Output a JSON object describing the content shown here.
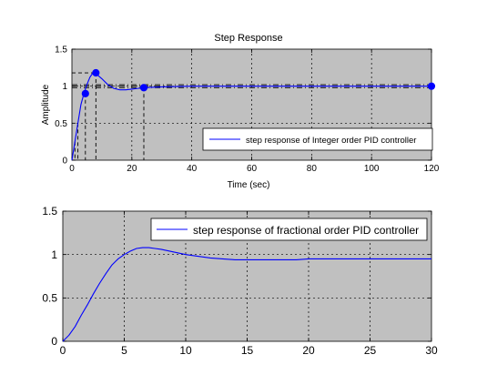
{
  "chart_data": [
    {
      "type": "line",
      "title": "Step Response",
      "xlabel": "Time (sec)",
      "ylabel": "Amplitude",
      "xlim": [
        0,
        120
      ],
      "ylim": [
        0,
        1.5
      ],
      "xticks": [
        0,
        20,
        40,
        60,
        80,
        100,
        120
      ],
      "xtick_labels": [
        "0",
        "20",
        "40",
        "60",
        "80",
        "100",
        "120"
      ],
      "yticks": [
        0,
        0.5,
        1,
        1.5
      ],
      "ytick_labels": [
        "0",
        "0.5",
        "1",
        "1.5"
      ],
      "grid": true,
      "legend": "bottom-right",
      "background": "#c0c0c0",
      "series": [
        {
          "name": "step response of Integer order PID controller",
          "color": "#0000ff",
          "x": [
            0,
            1,
            2,
            3,
            4,
            5,
            6,
            7,
            8,
            10,
            12,
            14,
            16,
            18,
            20,
            22,
            24,
            30,
            40,
            60,
            80,
            100,
            120
          ],
          "y": [
            0,
            0.25,
            0.5,
            0.75,
            0.9,
            1.02,
            1.12,
            1.18,
            1.17,
            1.1,
            1.02,
            0.97,
            0.95,
            0.95,
            0.96,
            0.97,
            0.98,
            0.99,
            1.0,
            1.0,
            1.0,
            1.0,
            1.0
          ]
        }
      ],
      "markers": [
        {
          "x": 4.5,
          "y": 0.9
        },
        {
          "x": 8,
          "y": 1.18
        },
        {
          "x": 24,
          "y": 0.98
        },
        {
          "x": 120,
          "y": 1.0
        }
      ],
      "reference_lines": {
        "horizontal": [
          0.98,
          1.0,
          1.02,
          1.18
        ],
        "vertical": [
          1,
          2,
          4.5,
          8,
          24
        ]
      }
    },
    {
      "type": "line",
      "title": "",
      "xlabel": "",
      "ylabel": "",
      "xlim": [
        0,
        30
      ],
      "ylim": [
        0,
        1.5
      ],
      "xticks": [
        0,
        5,
        10,
        15,
        20,
        25,
        30
      ],
      "xtick_labels": [
        "0",
        "5",
        "10",
        "15",
        "20",
        "25",
        "30"
      ],
      "yticks": [
        0,
        0.5,
        1,
        1.5
      ],
      "ytick_labels": [
        "0",
        "0.5",
        "1",
        "1.5"
      ],
      "grid": true,
      "legend": "top-right",
      "background": "#c0c0c0",
      "series": [
        {
          "name": "step response of fractional order PID controller",
          "color": "#0000ff",
          "x": [
            0,
            0.5,
            1,
            1.5,
            2,
            2.5,
            3,
            3.5,
            4,
            4.5,
            5,
            5.5,
            6,
            6.5,
            7,
            7.5,
            8,
            9,
            10,
            11,
            12,
            13,
            14,
            15,
            17,
            19,
            20,
            25,
            30
          ],
          "y": [
            0,
            0.07,
            0.17,
            0.3,
            0.42,
            0.55,
            0.67,
            0.78,
            0.88,
            0.95,
            1.0,
            1.04,
            1.07,
            1.08,
            1.08,
            1.07,
            1.06,
            1.03,
            1.0,
            0.98,
            0.96,
            0.95,
            0.94,
            0.94,
            0.94,
            0.94,
            0.95,
            0.95,
            0.95
          ]
        }
      ]
    }
  ]
}
